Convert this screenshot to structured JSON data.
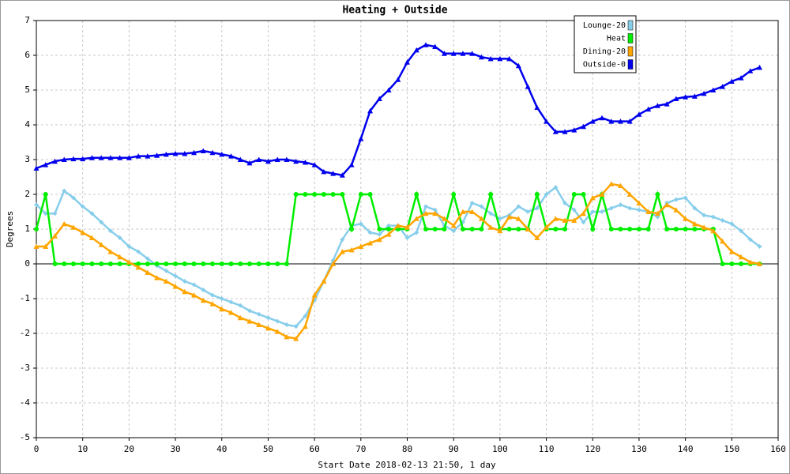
{
  "chart_data": {
    "type": "line",
    "title": "Heating + Outside",
    "x_label": "Start Date 2018-02-13 21:50, 1 day",
    "y_label": "Degrees",
    "x": [
      0,
      2,
      4,
      6,
      8,
      10,
      12,
      14,
      16,
      18,
      20,
      22,
      24,
      26,
      28,
      30,
      32,
      34,
      36,
      38,
      40,
      42,
      44,
      46,
      48,
      50,
      52,
      54,
      56,
      58,
      60,
      62,
      64,
      66,
      68,
      70,
      72,
      74,
      76,
      78,
      80,
      82,
      84,
      86,
      88,
      90,
      92,
      94,
      96,
      98,
      100,
      102,
      104,
      106,
      108,
      110,
      112,
      114,
      116,
      118,
      120,
      122,
      124,
      126,
      128,
      130,
      132,
      134,
      136,
      138,
      140,
      142,
      144,
      146,
      148,
      150,
      152,
      154,
      156
    ],
    "series": [
      {
        "name": "Lounge-20",
        "color": "#87ceeb",
        "marker": "diamond",
        "values": [
          1.7,
          1.45,
          1.45,
          2.1,
          1.9,
          1.65,
          1.45,
          1.2,
          0.95,
          0.75,
          0.5,
          0.35,
          0.15,
          -0.05,
          -0.2,
          -0.35,
          -0.5,
          -0.6,
          -0.75,
          -0.9,
          -1.0,
          -1.1,
          -1.2,
          -1.35,
          -1.45,
          -1.55,
          -1.65,
          -1.75,
          -1.8,
          -1.5,
          -1.05,
          -0.5,
          0.1,
          0.7,
          1.1,
          1.15,
          0.9,
          0.85,
          1.1,
          1.1,
          0.75,
          0.9,
          1.65,
          1.55,
          1.1,
          0.95,
          1.2,
          1.75,
          1.65,
          1.45,
          1.3,
          1.4,
          1.65,
          1.5,
          1.6,
          2.0,
          2.2,
          1.75,
          1.55,
          1.2,
          1.5,
          1.5,
          1.6,
          1.7,
          1.6,
          1.55,
          1.5,
          1.35,
          1.75,
          1.85,
          1.9,
          1.6,
          1.4,
          1.35,
          1.25,
          1.15,
          0.95,
          0.7,
          0.5
        ]
      },
      {
        "name": "Heat",
        "color": "#00ee00",
        "marker": "circle",
        "values": [
          1,
          2,
          0,
          0,
          0,
          0,
          0,
          0,
          0,
          0,
          0,
          0,
          0,
          0,
          0,
          0,
          0,
          0,
          0,
          0,
          0,
          0,
          0,
          0,
          0,
          0,
          0,
          0,
          2,
          2,
          2,
          2,
          2,
          2,
          1,
          2,
          2,
          1,
          1,
          1,
          1,
          2,
          1,
          1,
          1,
          2,
          1,
          1,
          1,
          2,
          1,
          1,
          1,
          1,
          2,
          1,
          1,
          1,
          2,
          2,
          1,
          2,
          1,
          1,
          1,
          1,
          1,
          2,
          1,
          1,
          1,
          1,
          1,
          1,
          0,
          0,
          0,
          0,
          0
        ]
      },
      {
        "name": "Dining-20",
        "color": "#ffa500",
        "marker": "triangle",
        "values": [
          0.5,
          0.5,
          0.8,
          1.15,
          1.05,
          0.9,
          0.75,
          0.55,
          0.35,
          0.2,
          0.05,
          -0.1,
          -0.25,
          -0.4,
          -0.5,
          -0.65,
          -0.8,
          -0.9,
          -1.05,
          -1.15,
          -1.3,
          -1.4,
          -1.55,
          -1.65,
          -1.75,
          -1.85,
          -1.95,
          -2.1,
          -2.15,
          -1.8,
          -0.9,
          -0.5,
          0.0,
          0.35,
          0.4,
          0.5,
          0.6,
          0.7,
          0.85,
          1.1,
          1.05,
          1.3,
          1.45,
          1.45,
          1.3,
          1.1,
          1.5,
          1.5,
          1.3,
          1.05,
          0.95,
          1.35,
          1.3,
          1.0,
          0.75,
          1.05,
          1.3,
          1.25,
          1.25,
          1.45,
          1.9,
          2.0,
          2.3,
          2.25,
          2.0,
          1.75,
          1.5,
          1.45,
          1.7,
          1.55,
          1.3,
          1.15,
          1.05,
          0.95,
          0.65,
          0.35,
          0.2,
          0.05,
          0.0
        ]
      },
      {
        "name": "Outside-0",
        "color": "#0000ee",
        "marker": "triangle",
        "values": [
          2.75,
          2.85,
          2.95,
          3.0,
          3.02,
          3.02,
          3.05,
          3.05,
          3.05,
          3.05,
          3.05,
          3.1,
          3.1,
          3.12,
          3.15,
          3.17,
          3.17,
          3.2,
          3.25,
          3.2,
          3.15,
          3.1,
          3.0,
          2.9,
          3.0,
          2.95,
          3.0,
          3.0,
          2.95,
          2.92,
          2.85,
          2.65,
          2.6,
          2.55,
          2.85,
          3.6,
          4.4,
          4.75,
          5.0,
          5.3,
          5.8,
          6.15,
          6.3,
          6.25,
          6.05,
          6.05,
          6.05,
          6.05,
          5.95,
          5.9,
          5.9,
          5.9,
          5.7,
          5.1,
          4.5,
          4.1,
          3.8,
          3.8,
          3.85,
          3.95,
          4.1,
          4.2,
          4.1,
          4.1,
          4.1,
          4.3,
          4.45,
          4.55,
          4.6,
          4.75,
          4.8,
          4.82,
          4.9,
          5.0,
          5.1,
          5.25,
          5.35,
          5.55,
          5.65
        ]
      }
    ],
    "xlim": [
      0,
      160
    ],
    "xticks": [
      0,
      10,
      20,
      30,
      40,
      50,
      60,
      70,
      80,
      90,
      100,
      110,
      120,
      130,
      140,
      150,
      160
    ],
    "ylim": [
      -5,
      7
    ],
    "yticks": [
      -5,
      -4,
      -3,
      -2,
      -1,
      0,
      1,
      2,
      3,
      4,
      5,
      6,
      7
    ],
    "grid": true,
    "legend": "top-right"
  }
}
